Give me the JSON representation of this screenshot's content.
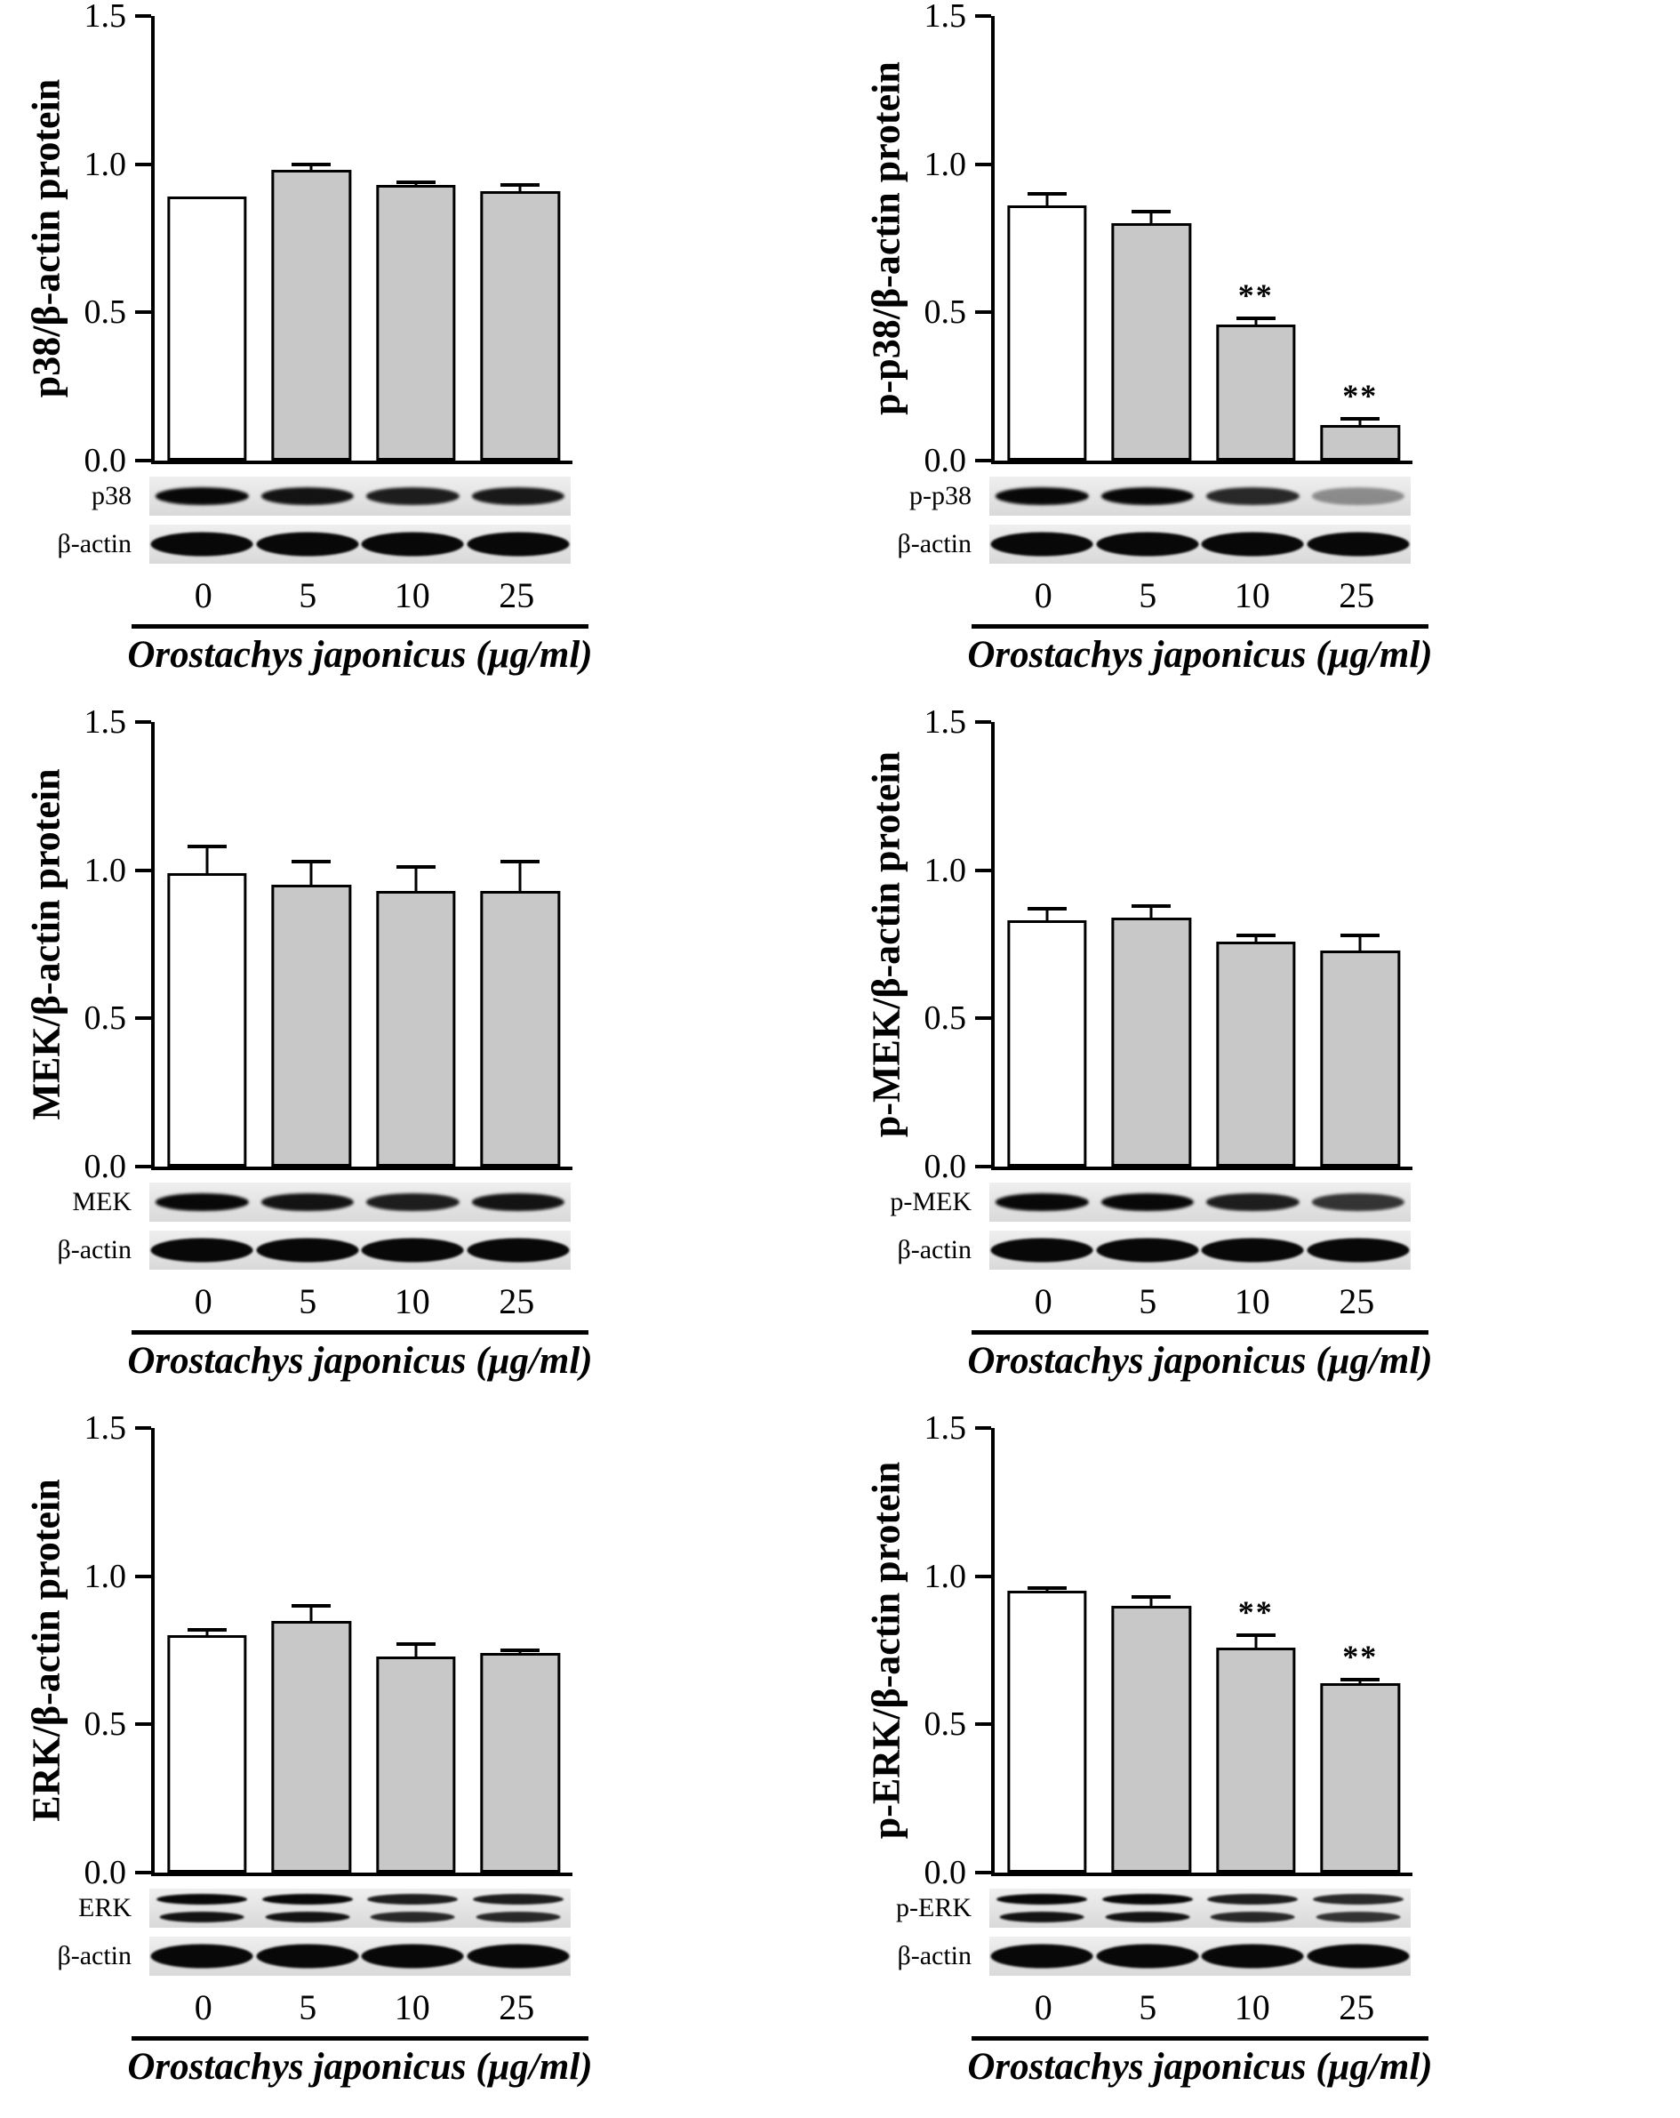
{
  "figure": {
    "background": "#ffffff",
    "bar_fill_first": "#ffffff",
    "bar_fill_rest": "#c8c8c8",
    "bar_border": "#000000",
    "significance_marker": "**"
  },
  "chart_data": [
    {
      "type": "bar",
      "ylabel": "p38/β-actin protein",
      "xlabel": "Orostachys japonicus (μg/ml)",
      "categories": [
        "0",
        "5",
        "10",
        "25"
      ],
      "values": [
        0.89,
        0.98,
        0.93,
        0.91
      ],
      "errors": [
        0,
        0.02,
        0.01,
        0.02
      ],
      "significance": [
        "",
        "",
        "",
        ""
      ],
      "ylim": [
        0,
        1.5
      ],
      "yticks": [
        0,
        0.5,
        1,
        1.5
      ],
      "legend": "none",
      "grid": false,
      "blot_rows": [
        {
          "label": "p38",
          "band_style": "single",
          "intensities": [
            1,
            0.95,
            0.9,
            0.92
          ]
        },
        {
          "label": "β-actin",
          "band_style": "actin",
          "intensities": [
            1,
            1,
            1,
            1
          ]
        }
      ]
    },
    {
      "type": "bar",
      "ylabel": "p-p38/β-actin protein",
      "xlabel": "Orostachys japonicus (μg/ml)",
      "categories": [
        "0",
        "5",
        "10",
        "25"
      ],
      "values": [
        0.86,
        0.8,
        0.46,
        0.12
      ],
      "errors": [
        0.04,
        0.04,
        0.02,
        0.02
      ],
      "significance": [
        "",
        "",
        "**",
        "**"
      ],
      "ylim": [
        0,
        1.5
      ],
      "yticks": [
        0,
        0.5,
        1,
        1.5
      ],
      "legend": "none",
      "grid": false,
      "blot_rows": [
        {
          "label": "p-p38",
          "band_style": "single",
          "intensities": [
            1,
            1,
            0.85,
            0.4
          ]
        },
        {
          "label": "β-actin",
          "band_style": "actin",
          "intensities": [
            1,
            1,
            1,
            1
          ]
        }
      ]
    },
    {
      "type": "bar",
      "ylabel": "MEK/β-actin protein",
      "xlabel": "Orostachys japonicus (μg/ml)",
      "categories": [
        "0",
        "5",
        "10",
        "25"
      ],
      "values": [
        0.99,
        0.95,
        0.93,
        0.93
      ],
      "errors": [
        0.09,
        0.08,
        0.08,
        0.1
      ],
      "significance": [
        "",
        "",
        "",
        ""
      ],
      "ylim": [
        0,
        1.5
      ],
      "yticks": [
        0,
        0.5,
        1,
        1.5
      ],
      "legend": "none",
      "grid": false,
      "blot_rows": [
        {
          "label": "MEK",
          "band_style": "single",
          "intensities": [
            1,
            0.95,
            0.9,
            0.95
          ]
        },
        {
          "label": "β-actin",
          "band_style": "actin",
          "intensities": [
            1,
            1,
            1,
            1
          ]
        }
      ]
    },
    {
      "type": "bar",
      "ylabel": "p-MEK/β-actin protein",
      "xlabel": "Orostachys japonicus (μg/ml)",
      "categories": [
        "0",
        "5",
        "10",
        "25"
      ],
      "values": [
        0.83,
        0.84,
        0.76,
        0.73
      ],
      "errors": [
        0.04,
        0.04,
        0.02,
        0.05
      ],
      "significance": [
        "",
        "",
        "",
        ""
      ],
      "ylim": [
        0,
        1.5
      ],
      "yticks": [
        0,
        0.5,
        1,
        1.5
      ],
      "legend": "none",
      "grid": false,
      "blot_rows": [
        {
          "label": "p-MEK",
          "band_style": "single",
          "intensities": [
            1,
            1,
            0.9,
            0.8
          ]
        },
        {
          "label": "β-actin",
          "band_style": "actin",
          "intensities": [
            1,
            1,
            1,
            1
          ]
        }
      ]
    },
    {
      "type": "bar",
      "ylabel": "ERK/β-actin protein",
      "xlabel": "Orostachys japonicus (μg/ml)",
      "categories": [
        "0",
        "5",
        "10",
        "25"
      ],
      "values": [
        0.8,
        0.85,
        0.73,
        0.74
      ],
      "errors": [
        0.02,
        0.05,
        0.04,
        0.01
      ],
      "significance": [
        "",
        "",
        "",
        ""
      ],
      "ylim": [
        0,
        1.5
      ],
      "yticks": [
        0,
        0.5,
        1,
        1.5
      ],
      "legend": "none",
      "grid": false,
      "blot_rows": [
        {
          "label": "ERK",
          "band_style": "doublet",
          "intensities": [
            1,
            1,
            0.9,
            0.9
          ]
        },
        {
          "label": "β-actin",
          "band_style": "actin",
          "intensities": [
            1,
            1,
            1,
            1
          ]
        }
      ]
    },
    {
      "type": "bar",
      "ylabel": "p-ERK/β-actin protein",
      "xlabel": "Orostachys japonicus (μg/ml)",
      "categories": [
        "0",
        "5",
        "10",
        "25"
      ],
      "values": [
        0.95,
        0.9,
        0.76,
        0.64
      ],
      "errors": [
        0.01,
        0.03,
        0.04,
        0.01
      ],
      "significance": [
        "",
        "",
        "**",
        "**"
      ],
      "ylim": [
        0,
        1.5
      ],
      "yticks": [
        0,
        0.5,
        1,
        1.5
      ],
      "legend": "none",
      "grid": false,
      "blot_rows": [
        {
          "label": "p-ERK",
          "band_style": "doublet",
          "intensities": [
            1,
            1,
            0.9,
            0.85
          ]
        },
        {
          "label": "β-actin",
          "band_style": "actin",
          "intensities": [
            1,
            1,
            1,
            1
          ]
        }
      ]
    }
  ]
}
